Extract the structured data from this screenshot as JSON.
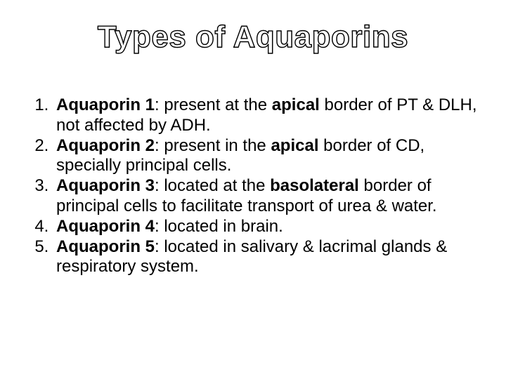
{
  "title": "Types of Aquaporins",
  "item1_lead": "Aquaporin 1",
  "item1_mid1": ": present at the ",
  "item1_bold": "apical",
  "item1_tail": " border of PT & DLH, not affected by ADH.",
  "item2_lead": "Aquaporin 2",
  "item2_mid1": ": present in the ",
  "item2_bold": "apical",
  "item2_tail": " border of CD, specially principal cells.",
  "item3_lead": "Aquaporin 3",
  "item3_mid1": ": located at the ",
  "item3_bold": "basolateral",
  "item3_tail": " border of principal cells to facilitate transport of urea & water.",
  "item4_lead": "Aquaporin 4",
  "item4_tail": ": located in brain.",
  "item5_lead": "Aquaporin 5",
  "item5_tail": ": located in salivary & lacrimal glands & respiratory system.",
  "style": {
    "background_color": "#ffffff",
    "text_color": "#000000",
    "title_fontsize": 44,
    "title_weight": 700,
    "title_fill": "#ffffff",
    "title_stroke": "#000000",
    "body_fontsize": 24,
    "font_family": "Arial"
  }
}
